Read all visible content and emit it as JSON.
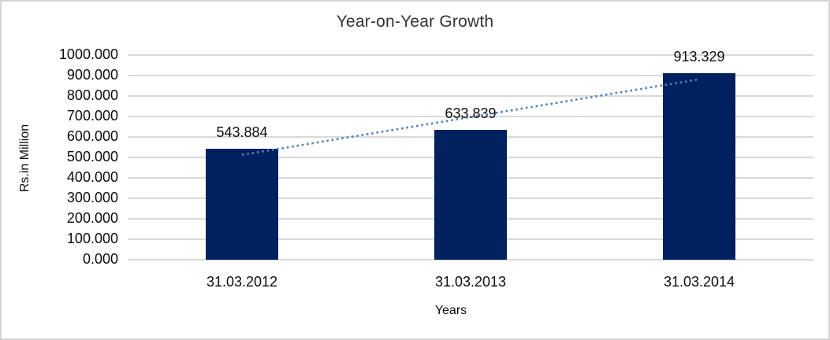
{
  "window": {
    "background": "#ffffff",
    "border_color": "#d4d4d4"
  },
  "chart_data": {
    "type": "bar",
    "title": "Year-on-Year Growth",
    "xlabel": "Years",
    "ylabel": "Rs.in Million",
    "categories": [
      "31.03.2012",
      "31.03.2013",
      "31.03.2014"
    ],
    "values": [
      543.884,
      633.839,
      913.329
    ],
    "data_labels": [
      "543.884",
      "633.839",
      "913.329"
    ],
    "ylim": [
      0,
      1000
    ],
    "ytick_step": 100,
    "ytick_labels": [
      "0.000",
      "100.000",
      "200.000",
      "300.000",
      "400.000",
      "500.000",
      "600.000",
      "700.000",
      "800.000",
      "900.000",
      "1000.000"
    ],
    "grid": true,
    "legend": "none",
    "bar_color": "#002060",
    "gridline_color": "#d9d9d9",
    "trendline": {
      "type": "linear",
      "style": "dotted",
      "color": "#4f81bd"
    }
  }
}
